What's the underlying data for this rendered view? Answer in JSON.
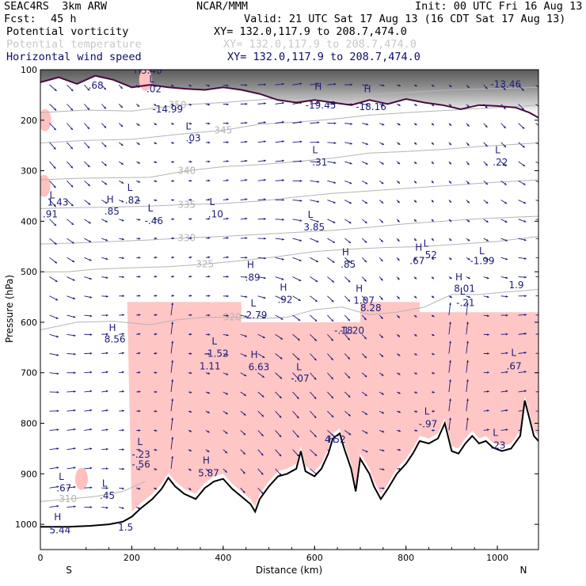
{
  "header": {
    "model": "SEAC4RS  3km ARW",
    "org": "NCAR/MMM",
    "init": "Init: 00 UTC Fri 16 Aug 13",
    "fcst_label": "Fcst:",
    "fcst_value": "45 h",
    "valid": "Valid: 21 UTC Sat 17 Aug 13 (16 CDT Sat 17 Aug 13)",
    "fields": [
      {
        "name": "Potential vorticity",
        "xy": "XY= 132.0,117.9 to 208.7,474.0",
        "color": "#000000"
      },
      {
        "name": "Potential temperature",
        "xy": "XY= 132.0,117.9 to 208.7,474.0",
        "color": "#c8c8c8"
      },
      {
        "name": "Horizontal wind speed",
        "xy": "XY= 132.0,117.9 to 208.7,474.0",
        "color": "#0b0b6e"
      }
    ]
  },
  "chart_data": {
    "type": "cross-section",
    "xlabel": "Distance (km)",
    "ylabel": "Pressure (hPa)",
    "xlim": [
      0,
      1090
    ],
    "ylim": [
      1050,
      100
    ],
    "x_ticks": [
      0,
      200,
      400,
      600,
      800,
      1000
    ],
    "y_ticks": [
      100,
      200,
      300,
      400,
      500,
      600,
      700,
      800,
      900,
      1000
    ],
    "endpoint_labels": {
      "left": "S",
      "right": "N"
    },
    "colors": {
      "pv_shading": "#ffc0c0",
      "theta": "#b4b4b4",
      "wind": "#1b1b7a",
      "terrain": "#000000",
      "tropopause": "#4a0a40"
    },
    "terrain": [
      [
        0,
        1005
      ],
      [
        60,
        1005
      ],
      [
        110,
        1003
      ],
      [
        150,
        1000
      ],
      [
        180,
        995
      ],
      [
        200,
        985
      ],
      [
        220,
        968
      ],
      [
        245,
        950
      ],
      [
        265,
        930
      ],
      [
        280,
        908
      ],
      [
        295,
        925
      ],
      [
        315,
        940
      ],
      [
        340,
        950
      ],
      [
        360,
        928
      ],
      [
        380,
        915
      ],
      [
        400,
        910
      ],
      [
        420,
        930
      ],
      [
        440,
        945
      ],
      [
        460,
        960
      ],
      [
        470,
        975
      ],
      [
        480,
        950
      ],
      [
        500,
        925
      ],
      [
        520,
        905
      ],
      [
        540,
        900
      ],
      [
        560,
        890
      ],
      [
        570,
        855
      ],
      [
        580,
        895
      ],
      [
        600,
        905
      ],
      [
        615,
        890
      ],
      [
        630,
        860
      ],
      [
        640,
        830
      ],
      [
        655,
        820
      ],
      [
        665,
        850
      ],
      [
        680,
        890
      ],
      [
        690,
        935
      ],
      [
        700,
        870
      ],
      [
        720,
        900
      ],
      [
        730,
        925
      ],
      [
        745,
        950
      ],
      [
        760,
        930
      ],
      [
        780,
        900
      ],
      [
        800,
        880
      ],
      [
        815,
        860
      ],
      [
        830,
        835
      ],
      [
        850,
        840
      ],
      [
        870,
        830
      ],
      [
        885,
        800
      ],
      [
        900,
        855
      ],
      [
        915,
        860
      ],
      [
        930,
        840
      ],
      [
        945,
        825
      ],
      [
        960,
        840
      ],
      [
        975,
        835
      ],
      [
        990,
        848
      ],
      [
        1010,
        855
      ],
      [
        1030,
        850
      ],
      [
        1050,
        825
      ],
      [
        1060,
        755
      ],
      [
        1070,
        790
      ],
      [
        1080,
        825
      ],
      [
        1090,
        835
      ]
    ],
    "tropopause": [
      [
        0,
        125
      ],
      [
        40,
        115
      ],
      [
        80,
        128
      ],
      [
        120,
        112
      ],
      [
        160,
        120
      ],
      [
        200,
        135
      ],
      [
        240,
        130
      ],
      [
        280,
        135
      ],
      [
        320,
        138
      ],
      [
        360,
        140
      ],
      [
        400,
        135
      ],
      [
        440,
        140
      ],
      [
        480,
        148
      ],
      [
        520,
        160
      ],
      [
        560,
        165
      ],
      [
        600,
        160
      ],
      [
        640,
        165
      ],
      [
        680,
        170
      ],
      [
        720,
        160
      ],
      [
        760,
        168
      ],
      [
        800,
        158
      ],
      [
        840,
        165
      ],
      [
        880,
        170
      ],
      [
        920,
        178
      ],
      [
        960,
        170
      ],
      [
        1000,
        172
      ],
      [
        1040,
        175
      ],
      [
        1070,
        185
      ],
      [
        1090,
        195
      ]
    ],
    "theta_contours": [
      {
        "label": "310",
        "points": [
          [
            0,
            955
          ],
          [
            60,
            950
          ],
          [
            120,
            945
          ],
          [
            180,
            935
          ],
          [
            230,
            915
          ]
        ]
      },
      {
        "label": "320",
        "points": [
          [
            0,
            615
          ],
          [
            80,
            600
          ],
          [
            160,
            598
          ],
          [
            240,
            605
          ],
          [
            300,
            595
          ],
          [
            360,
            590
          ],
          [
            420,
            590
          ],
          [
            480,
            593
          ],
          [
            540,
            590
          ],
          [
            600,
            575
          ],
          [
            660,
            570
          ],
          [
            720,
            585
          ],
          [
            780,
            580
          ],
          [
            840,
            570
          ],
          [
            900,
            545
          ],
          [
            960,
            545
          ],
          [
            1020,
            540
          ],
          [
            1090,
            535
          ]
        ]
      },
      {
        "label": "325",
        "points": [
          [
            0,
            500
          ],
          [
            60,
            500
          ],
          [
            120,
            495
          ],
          [
            200,
            492
          ],
          [
            280,
            490
          ],
          [
            360,
            485
          ],
          [
            440,
            478
          ],
          [
            520,
            470
          ],
          [
            600,
            460
          ],
          [
            680,
            455
          ],
          [
            760,
            452
          ],
          [
            840,
            450
          ],
          [
            920,
            445
          ],
          [
            1000,
            440
          ],
          [
            1090,
            430
          ]
        ]
      },
      {
        "label": "330",
        "points": [
          [
            0,
            445
          ],
          [
            80,
            443
          ],
          [
            160,
            440
          ],
          [
            240,
            437
          ],
          [
            320,
            433
          ],
          [
            400,
            430
          ],
          [
            480,
            426
          ],
          [
            560,
            422
          ],
          [
            640,
            418
          ],
          [
            720,
            412
          ],
          [
            800,
            405
          ],
          [
            880,
            400
          ],
          [
            960,
            395
          ],
          [
            1090,
            390
          ]
        ]
      },
      {
        "label": "335",
        "points": [
          [
            0,
            375
          ],
          [
            80,
            373
          ],
          [
            160,
            372
          ],
          [
            240,
            370
          ],
          [
            320,
            367
          ],
          [
            400,
            365
          ],
          [
            480,
            360
          ],
          [
            560,
            352
          ],
          [
            640,
            345
          ],
          [
            720,
            340
          ],
          [
            800,
            335
          ],
          [
            880,
            330
          ],
          [
            960,
            325
          ],
          [
            1090,
            318
          ]
        ]
      },
      {
        "label": "340",
        "points": [
          [
            0,
            318
          ],
          [
            80,
            315
          ],
          [
            160,
            314
          ],
          [
            240,
            313
          ],
          [
            320,
            300
          ],
          [
            400,
            292
          ],
          [
            480,
            288
          ],
          [
            560,
            282
          ],
          [
            640,
            275
          ],
          [
            720,
            265
          ],
          [
            800,
            262
          ],
          [
            880,
            258
          ],
          [
            960,
            252
          ],
          [
            1090,
            245
          ]
        ]
      },
      {
        "label": "345",
        "points": [
          [
            0,
            245
          ],
          [
            100,
            240
          ],
          [
            200,
            238
          ],
          [
            300,
            228
          ],
          [
            400,
            220
          ],
          [
            480,
            208
          ],
          [
            560,
            204
          ],
          [
            640,
            198
          ],
          [
            720,
            190
          ],
          [
            800,
            185
          ],
          [
            900,
            180
          ],
          [
            1000,
            175
          ],
          [
            1090,
            170
          ]
        ]
      },
      {
        "label": "350",
        "points": [
          [
            0,
            185
          ],
          [
            100,
            180
          ],
          [
            200,
            182
          ],
          [
            300,
            170
          ],
          [
            400,
            165
          ],
          [
            500,
            158
          ],
          [
            600,
            155
          ],
          [
            700,
            150
          ],
          [
            800,
            145
          ],
          [
            900,
            140
          ],
          [
            1090,
            135
          ]
        ]
      }
    ],
    "hl_labels": [
      {
        "text": "L",
        "x": 20,
        "y": 355
      },
      {
        "text": "1.43",
        "x": 15,
        "y": 369
      },
      {
        "text": ".91",
        "x": 5,
        "y": 392
      },
      {
        "text": "H",
        "x": 145,
        "y": 363
      },
      {
        "text": ".85",
        "x": 140,
        "y": 387
      },
      {
        "text": "L",
        "x": 190,
        "y": 340
      },
      {
        "text": ".82",
        "x": 185,
        "y": 365
      },
      {
        "text": "L",
        "x": 235,
        "y": 381
      },
      {
        "text": "-.46",
        "x": 228,
        "y": 406
      },
      {
        "text": "L",
        "x": 370,
        "y": 368
      },
      {
        "text": ".10",
        "x": 367,
        "y": 392
      },
      {
        "text": "L",
        "x": 585,
        "y": 393
      },
      {
        "text": "3.85",
        "x": 576,
        "y": 418
      },
      {
        "text": "H",
        "x": 660,
        "y": 468
      },
      {
        "text": ".85",
        "x": 657,
        "y": 492
      },
      {
        "text": "H",
        "x": 452,
        "y": 493
      },
      {
        "text": ".89",
        "x": 448,
        "y": 518
      },
      {
        "text": "H",
        "x": 524,
        "y": 537
      },
      {
        "text": ".92",
        "x": 519,
        "y": 562
      },
      {
        "text": "L",
        "x": 460,
        "y": 569
      },
      {
        "text": "2.79",
        "x": 450,
        "y": 592
      },
      {
        "text": "H",
        "x": 150,
        "y": 617
      },
      {
        "text": "8.56",
        "x": 140,
        "y": 640
      },
      {
        "text": "L",
        "x": 375,
        "y": 644
      },
      {
        "text": "-1.52",
        "x": 358,
        "y": 668
      },
      {
        "text": "1.11",
        "x": 348,
        "y": 693
      },
      {
        "text": "H",
        "x": 460,
        "y": 671
      },
      {
        "text": "6.63",
        "x": 455,
        "y": 695
      },
      {
        "text": "L",
        "x": 560,
        "y": 695
      },
      {
        "text": "-.07",
        "x": 548,
        "y": 718
      },
      {
        "text": "H",
        "x": 690,
        "y": 540
      },
      {
        "text": "1.07",
        "x": 685,
        "y": 563
      },
      {
        "text": "8.28",
        "x": 700,
        "y": 578
      },
      {
        "text": "-.18",
        "x": 643,
        "y": 623
      },
      {
        "text": "-1.20",
        "x": 655,
        "y": 623
      },
      {
        "text": "H",
        "x": 820,
        "y": 458
      },
      {
        "text": "L",
        "x": 838,
        "y": 450
      },
      {
        "text": ".52",
        "x": 835,
        "y": 473
      },
      {
        "text": ".67",
        "x": 808,
        "y": 485
      },
      {
        "text": "L",
        "x": 960,
        "y": 465
      },
      {
        "text": "-1.99",
        "x": 940,
        "y": 485
      },
      {
        "text": "H",
        "x": 908,
        "y": 517
      },
      {
        "text": "8.01",
        "x": 905,
        "y": 540
      },
      {
        "text": "L",
        "x": 918,
        "y": 545
      },
      {
        "text": "-.21",
        "x": 910,
        "y": 568
      },
      {
        "text": "1.9",
        "x": 1025,
        "y": 533
      },
      {
        "text": "L",
        "x": 1030,
        "y": 667
      },
      {
        "text": ".67",
        "x": 1020,
        "y": 693
      },
      {
        "text": "L",
        "x": 840,
        "y": 783
      },
      {
        "text": "-.97",
        "x": 828,
        "y": 808
      },
      {
        "text": "L",
        "x": 990,
        "y": 825
      },
      {
        "text": ".23",
        "x": 985,
        "y": 850
      },
      {
        "text": "L",
        "x": 212,
        "y": 843
      },
      {
        "text": "-.23",
        "x": 200,
        "y": 868
      },
      {
        "text": "-.56",
        "x": 200,
        "y": 888
      },
      {
        "text": "H",
        "x": 355,
        "y": 880
      },
      {
        "text": "5.87",
        "x": 345,
        "y": 905
      },
      {
        "text": "H",
        "x": 630,
        "y": 838
      },
      {
        "text": "4.52",
        "x": 622,
        "y": 838
      },
      {
        "text": "H",
        "x": 205,
        "y": 108
      },
      {
        "text": "3.48",
        "x": 220,
        "y": 108
      },
      {
        "text": ".68",
        "x": 105,
        "y": 138
      },
      {
        "text": "L",
        "x": 238,
        "y": 125
      },
      {
        "text": ".02",
        "x": 232,
        "y": 145
      },
      {
        "text": "-14.99",
        "x": 245,
        "y": 185
      },
      {
        "text": "L",
        "x": 318,
        "y": 218
      },
      {
        "text": ".03",
        "x": 318,
        "y": 242
      },
      {
        "text": "H",
        "x": 600,
        "y": 140
      },
      {
        "text": "-19.45",
        "x": 580,
        "y": 177
      },
      {
        "text": "H",
        "x": 708,
        "y": 145
      },
      {
        "text": "-18.16",
        "x": 690,
        "y": 180
      },
      {
        "text": "L",
        "x": 595,
        "y": 265
      },
      {
        "text": ".31",
        "x": 595,
        "y": 290
      },
      {
        "text": "L",
        "x": 995,
        "y": 265
      },
      {
        "text": ".22",
        "x": 990,
        "y": 290
      },
      {
        "text": "-13.46",
        "x": 985,
        "y": 135
      },
      {
        "text": "L",
        "x": 40,
        "y": 912
      },
      {
        "text": ".67",
        "x": 35,
        "y": 935
      },
      {
        "text": "L",
        "x": 135,
        "y": 925
      },
      {
        "text": ".45",
        "x": 130,
        "y": 950
      },
      {
        "text": "H",
        "x": 30,
        "y": 992
      },
      {
        "text": "5.44",
        "x": 20,
        "y": 1018
      },
      {
        "text": "1.5",
        "x": 170,
        "y": 1012
      }
    ]
  }
}
